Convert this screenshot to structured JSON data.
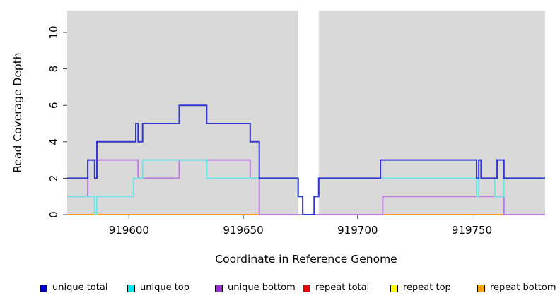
{
  "figure": {
    "xlabel": "Coordinate in Reference Genome",
    "ylabel": "Read Coverage Depth"
  },
  "legend": {
    "items": [
      {
        "label": "unique total",
        "color": "#0000CD"
      },
      {
        "label": "unique top",
        "color": "#00E5EE"
      },
      {
        "label": "unique bottom",
        "color": "#9932CC"
      },
      {
        "label": "repeat total",
        "color": "#EE0000"
      },
      {
        "label": "repeat top",
        "color": "#FFFF00"
      },
      {
        "label": "repeat bottom",
        "color": "#FFA500"
      }
    ]
  },
  "chart_data": {
    "type": "line",
    "title": "",
    "xlabel": "Coordinate in Reference Genome",
    "ylabel": "Read Coverage Depth",
    "xlim": [
      919573,
      919782
    ],
    "ylim": [
      0,
      11.2
    ],
    "xticks": [
      919600,
      919650,
      919700,
      919750
    ],
    "yticks": [
      0,
      2,
      4,
      6,
      8,
      10
    ],
    "grid": false,
    "legend_position": "bottom",
    "panel_bg": "#D9D9D9",
    "gap_band": [
      919674,
      919683
    ],
    "series": [
      {
        "name": "unique total",
        "line_color": "#3236D2",
        "steps": [
          [
            919573,
            2
          ],
          [
            919582,
            3
          ],
          [
            919585,
            2
          ],
          [
            919586,
            4
          ],
          [
            919603,
            5
          ],
          [
            919604,
            4
          ],
          [
            919606,
            5
          ],
          [
            919622,
            6
          ],
          [
            919634,
            5
          ],
          [
            919653,
            4
          ],
          [
            919657,
            2
          ],
          [
            919674,
            1
          ],
          [
            919676,
            0
          ],
          [
            919681,
            1
          ],
          [
            919683,
            2
          ],
          [
            919710,
            3
          ],
          [
            919752,
            2
          ],
          [
            919753,
            3
          ],
          [
            919754,
            2
          ],
          [
            919761,
            3
          ],
          [
            919764,
            2
          ]
        ],
        "end": 919782
      },
      {
        "name": "unique top",
        "line_color": "#72E4E8",
        "steps": [
          [
            919573,
            1
          ],
          [
            919585,
            0
          ],
          [
            919586,
            1
          ],
          [
            919602,
            2
          ],
          [
            919606,
            3
          ],
          [
            919634,
            2
          ],
          [
            919674,
            1
          ],
          [
            919676,
            0
          ],
          [
            919681,
            1
          ],
          [
            919683,
            2
          ],
          [
            919752,
            1
          ],
          [
            919753,
            2
          ],
          [
            919760,
            1
          ],
          [
            919764,
            2
          ]
        ],
        "end": 919782
      },
      {
        "name": "unique bottom",
        "line_color": "#BC7BDE",
        "steps": [
          [
            919573,
            1
          ],
          [
            919582,
            3
          ],
          [
            919604,
            2
          ],
          [
            919622,
            3
          ],
          [
            919653,
            2
          ],
          [
            919657,
            0
          ],
          [
            919711,
            1
          ],
          [
            919764,
            0
          ]
        ],
        "end": 919782
      },
      {
        "name": "repeat total",
        "line_color": "#C94F72",
        "steps": [
          [
            919573,
            0
          ]
        ],
        "end": 919782
      },
      {
        "name": "repeat top",
        "line_color": "#FFFF00",
        "steps": [
          [
            919573,
            0
          ]
        ],
        "end": 919782
      },
      {
        "name": "repeat bottom",
        "line_color": "#FF9E1B",
        "steps": [
          [
            919573,
            0
          ]
        ],
        "end": 919782,
        "visible_segments": [
          [
            919573,
            919657
          ],
          [
            919711,
            919764
          ]
        ]
      }
    ],
    "draw_order": [
      "repeat top",
      "repeat total",
      "repeat bottom",
      "unique bottom",
      "unique top",
      "unique total"
    ]
  }
}
